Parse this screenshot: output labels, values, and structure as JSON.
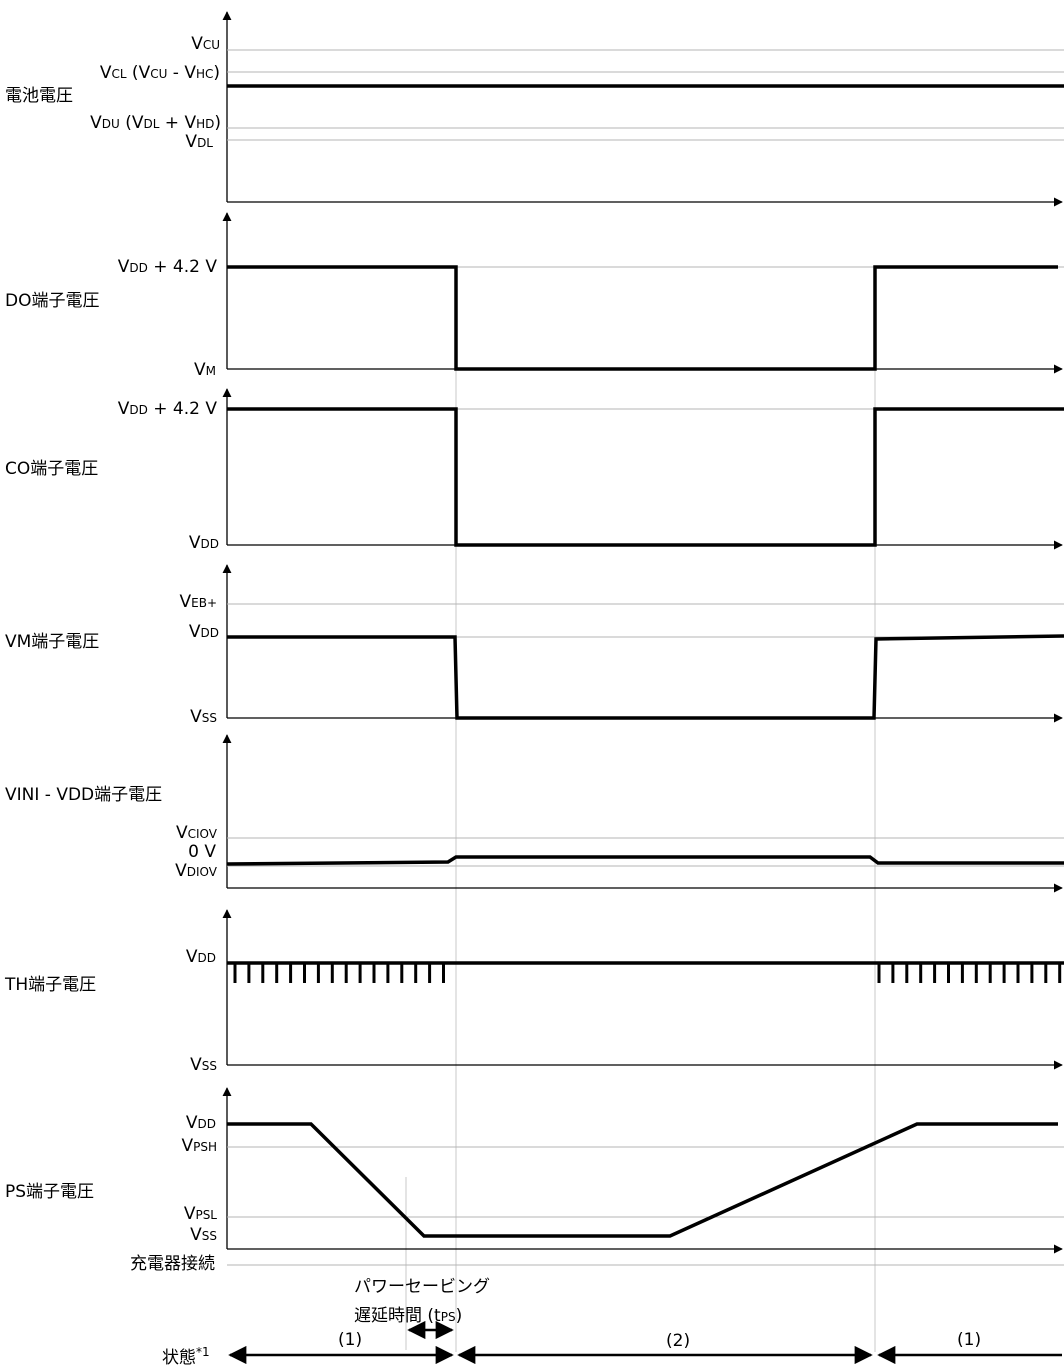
{
  "signals": {
    "battery": "電池電圧",
    "do": "DO端子電圧",
    "co": "CO端子電圧",
    "vm": "VM端子電圧",
    "vini": "VINI - VDD端子電圧",
    "th": "TH端子電圧",
    "ps": "PS端子電圧",
    "charger": "充電器接続"
  },
  "levels": {
    "v": "V",
    "cu": "CU",
    "cl": "CL",
    "hc": "HC",
    "du": "DU",
    "dl": "DL",
    "hd": "HD",
    "dd": "DD",
    "m": "M",
    "ss": "SS",
    "eb": "EB+",
    "ciov": "CIOV",
    "diov": "DIOV",
    "psh": "PSH",
    "psl": "PSL",
    "zero_v": "0 V",
    "plus_4_2": " + 4.2 V",
    "open_paren": " (V",
    "minus": " - V",
    "plus": " + V",
    "close_paren": ")"
  },
  "annotations": {
    "power_saving_line1": "パワーセービング",
    "power_saving_line2": "遅延時間",
    "t": " (t",
    "ps": "PS",
    "close": ")",
    "state_label": "状態",
    "state_note": "*1",
    "state_1": "(1)",
    "state_2": "(2)",
    "state_1b": "(1)"
  }
}
